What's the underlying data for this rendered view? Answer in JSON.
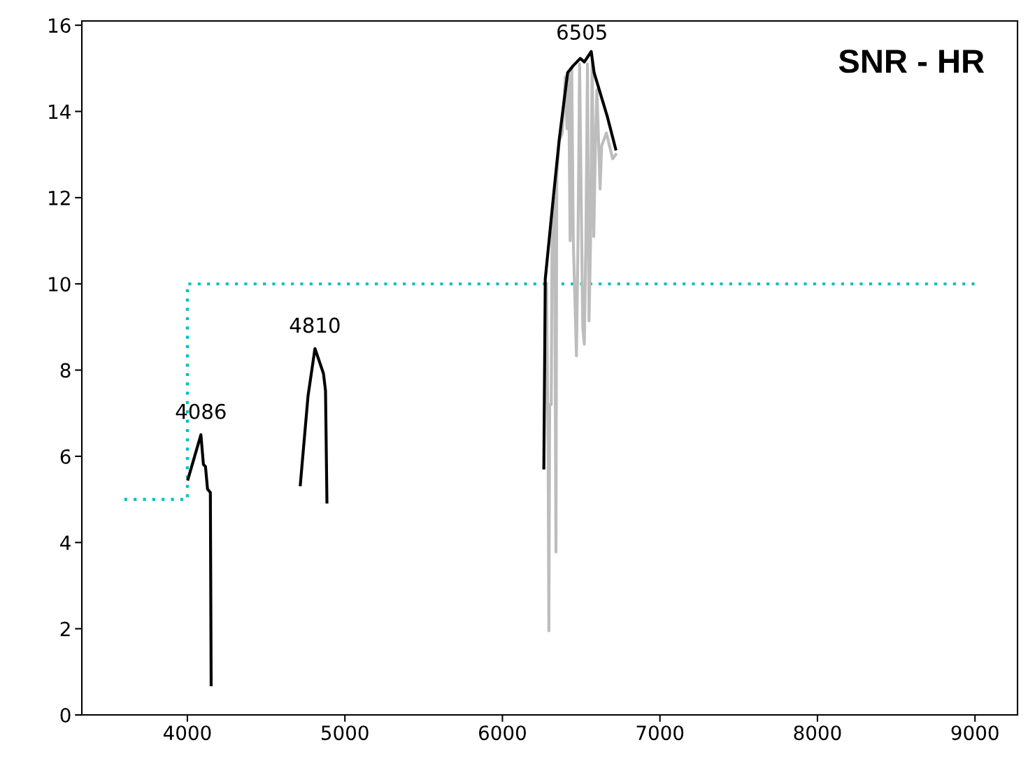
{
  "chart_data": {
    "type": "line",
    "title": "SNR - HR",
    "series": [
      {
        "color": "#00bfbf",
        "line_style": "dotted",
        "x": [
          3600,
          4000,
          4000,
          9000
        ],
        "values": [
          5,
          5,
          10,
          10
        ]
      },
      {
        "color": "#bdbdbd",
        "line_style": "solid",
        "x": [
          6280,
          6290,
          6295,
          6300,
          6310,
          6315,
          6330,
          6340,
          6345,
          6360,
          6380,
          6400,
          6410,
          6420,
          6430,
          6440,
          6450,
          6470,
          6480,
          6490,
          6510,
          6520,
          6530,
          6540,
          6550,
          6560,
          6570,
          6580,
          6590,
          6600,
          6620,
          6630,
          6660,
          6700,
          6720
        ],
        "values": [
          10.0,
          6.0,
          1.95,
          7.2,
          7.2,
          11.0,
          12.0,
          3.78,
          12.5,
          13.3,
          13.5,
          14.8,
          13.6,
          14.9,
          11.0,
          15.0,
          11.0,
          8.33,
          11.0,
          15.1,
          9.0,
          8.6,
          11.0,
          15.1,
          9.14,
          11.1,
          15.2,
          11.1,
          13.2,
          14.5,
          12.2,
          13.2,
          13.5,
          12.9,
          13.0
        ]
      },
      {
        "color": "#000000",
        "line_style": "solid",
        "x": [
          4004,
          4086,
          4102,
          4115,
          4128,
          4146,
          4151
        ],
        "values": [
          5.47,
          6.5,
          5.81,
          5.76,
          5.24,
          5.16,
          0.7
        ]
      },
      {
        "color": "#000000",
        "line_style": "solid",
        "x": [
          4717,
          4766,
          4810,
          4864,
          4877,
          4886
        ],
        "values": [
          5.34,
          7.4,
          8.5,
          7.92,
          7.52,
          4.94
        ]
      },
      {
        "color": "#000000",
        "line_style": "solid",
        "x": [
          6263,
          6272,
          6316,
          6361,
          6414,
          6449,
          6494,
          6520,
          6564,
          6582,
          6666,
          6719
        ],
        "values": [
          5.73,
          10.11,
          11.74,
          13.36,
          14.9,
          15.06,
          15.23,
          15.15,
          15.39,
          14.9,
          13.88,
          13.13
        ]
      }
    ],
    "annotations": [
      {
        "text": "4086",
        "x": 4086,
        "y": 6.5
      },
      {
        "text": "4810",
        "x": 4810,
        "y": 8.5
      },
      {
        "text": "6505",
        "x": 6505,
        "y": 15.3
      }
    ],
    "xlim": [
      3330,
      9270
    ],
    "xticks": [
      4000,
      5000,
      6000,
      7000,
      8000,
      9000
    ],
    "ylim": [
      0,
      16.1
    ],
    "yticks": [
      0,
      2,
      4,
      6,
      8,
      10,
      12,
      14,
      16
    ],
    "grid": false
  }
}
